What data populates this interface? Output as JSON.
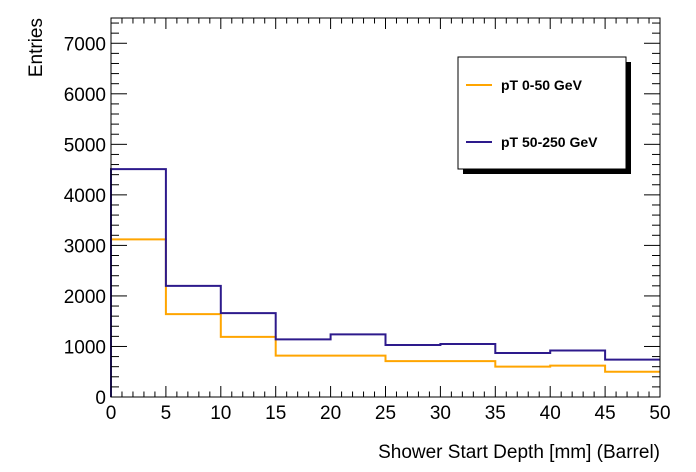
{
  "chart_data": {
    "type": "line",
    "step": true,
    "xlabel": "Shower Start Depth [mm] (Barrel)",
    "ylabel": "Entries",
    "xlim": [
      0,
      50
    ],
    "ylim": [
      0,
      7500
    ],
    "bin_edges": [
      0,
      5,
      10,
      15,
      20,
      25,
      30,
      35,
      40,
      45,
      50
    ],
    "x_ticks": [
      0,
      5,
      10,
      15,
      20,
      25,
      30,
      35,
      40,
      45,
      50
    ],
    "y_ticks": [
      0,
      1000,
      2000,
      3000,
      4000,
      5000,
      6000,
      7000
    ],
    "series": [
      {
        "name": "pT 0-50 GeV",
        "color": "#ffa500",
        "values": [
          3120,
          1640,
          1190,
          820,
          820,
          710,
          710,
          600,
          620,
          500
        ]
      },
      {
        "name": "pT 50-250 GeV",
        "color": "#2d1a8c",
        "values": [
          4510,
          2200,
          1660,
          1140,
          1240,
          1030,
          1050,
          870,
          920,
          740
        ]
      }
    ],
    "legend_position": "top-right",
    "grid": false
  }
}
